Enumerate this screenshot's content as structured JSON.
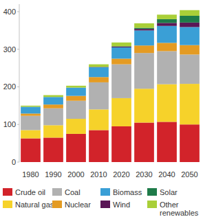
{
  "chart_data": {
    "type": "bar",
    "stacked": true,
    "legend": "bottom",
    "categories": [
      "1980",
      "1990",
      "2000",
      "2010",
      "2020",
      "2030",
      "2040",
      "2050"
    ],
    "series": [
      {
        "name": "Crude oil",
        "color": "#d2232a",
        "values": [
          63,
          65,
          75,
          85,
          95,
          105,
          107,
          100
        ]
      },
      {
        "name": "Natural gas",
        "color": "#f6d22a",
        "values": [
          22,
          33,
          40,
          55,
          75,
          90,
          100,
          108
        ]
      },
      {
        "name": "Coal",
        "color": "#b1b1b1",
        "values": [
          38,
          45,
          48,
          72,
          90,
          95,
          88,
          78
        ]
      },
      {
        "name": "Nuclear",
        "color": "#e49b23",
        "values": [
          6,
          10,
          13,
          14,
          15,
          20,
          22,
          25
        ]
      },
      {
        "name": "Biomass",
        "color": "#3a9fd6",
        "values": [
          18,
          20,
          22,
          26,
          30,
          40,
          45,
          48
        ]
      },
      {
        "name": "Wind",
        "color": "#5a1656",
        "values": [
          0,
          0,
          0,
          1,
          2,
          4,
          8,
          12
        ]
      },
      {
        "name": "Solar",
        "color": "#1e7b49",
        "values": [
          0,
          0,
          0,
          0,
          1,
          3,
          10,
          18
        ]
      },
      {
        "name": "Other renewables",
        "color": "#a9cf38",
        "values": [
          3,
          5,
          5,
          7,
          10,
          12,
          12,
          15
        ]
      }
    ],
    "ylim": [
      0,
      420
    ],
    "yticks": [
      0,
      100,
      200,
      300,
      400
    ],
    "grid": false
  }
}
